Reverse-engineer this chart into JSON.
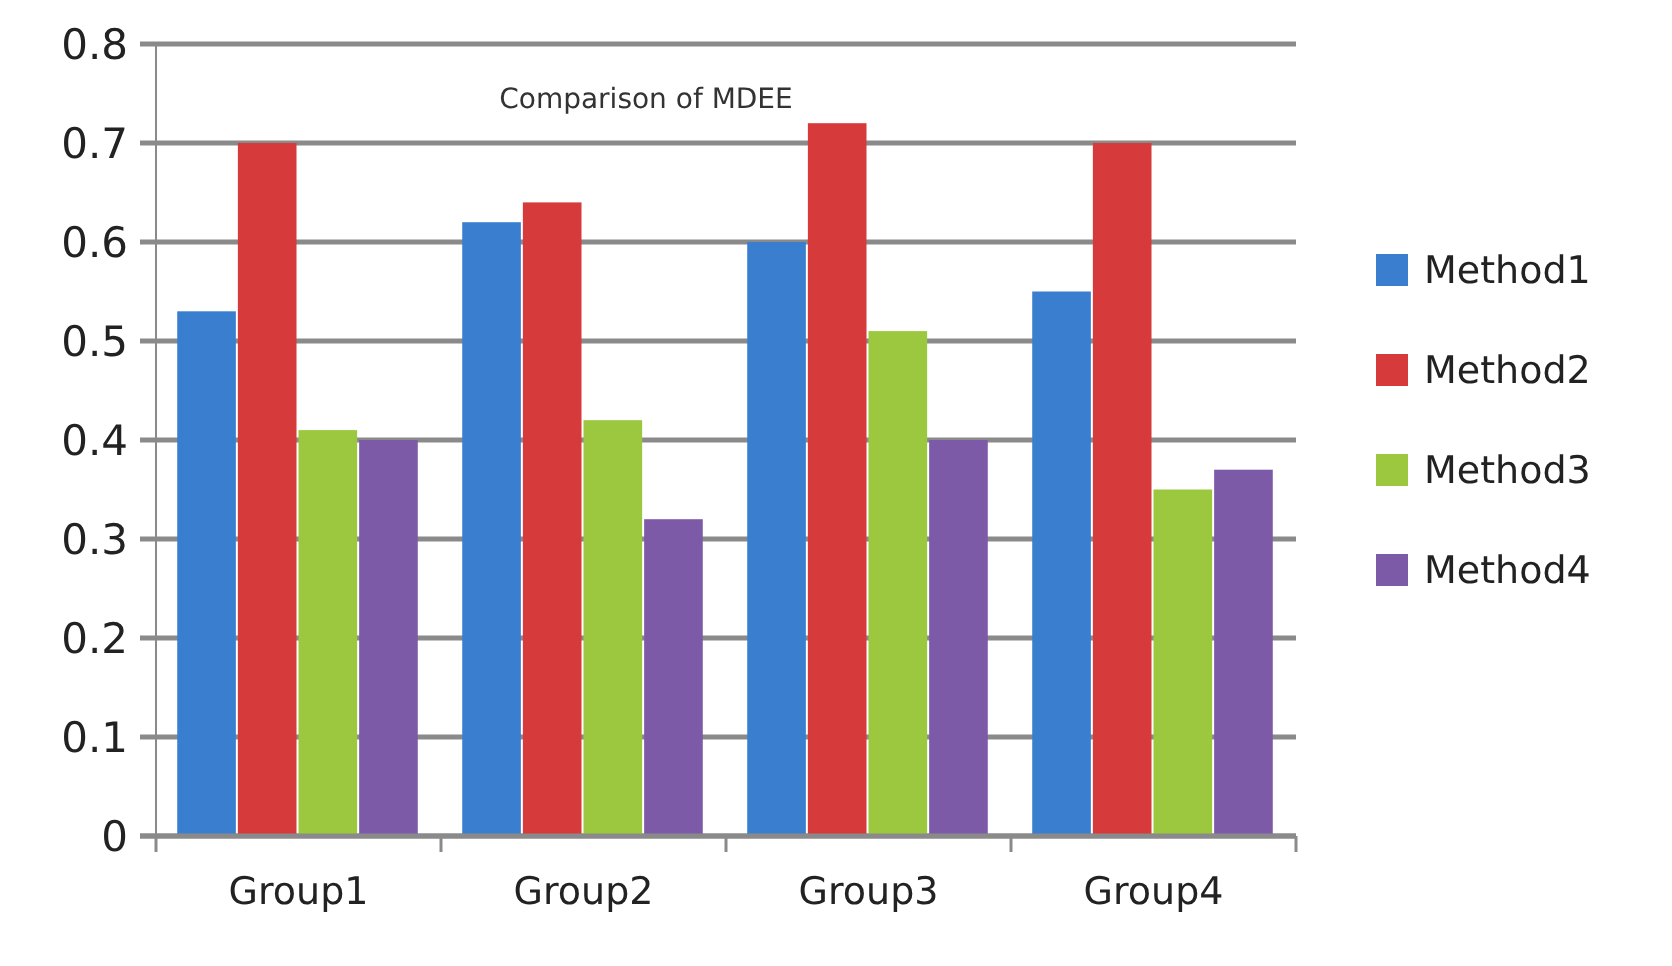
{
  "chart_data": {
    "type": "bar",
    "title": "Comparison of MDEE",
    "categories": [
      "Group1",
      "Group2",
      "Group3",
      "Group4"
    ],
    "series": [
      {
        "name": "Method1",
        "color": "#3a7fcf",
        "values": [
          0.53,
          0.62,
          0.6,
          0.55
        ]
      },
      {
        "name": "Method2",
        "color": "#d63a3a",
        "values": [
          0.7,
          0.64,
          0.72,
          0.7
        ]
      },
      {
        "name": "Method3",
        "color": "#9cc83f",
        "values": [
          0.41,
          0.42,
          0.51,
          0.35
        ]
      },
      {
        "name": "Method4",
        "color": "#7d5aa8",
        "values": [
          0.4,
          0.32,
          0.4,
          0.37
        ]
      }
    ],
    "ylim": [
      0,
      0.8
    ],
    "yticks": [
      0,
      0.1,
      0.2,
      0.3,
      0.4,
      0.5,
      0.6,
      0.7,
      0.8
    ],
    "grid": "y",
    "legend": "right"
  }
}
